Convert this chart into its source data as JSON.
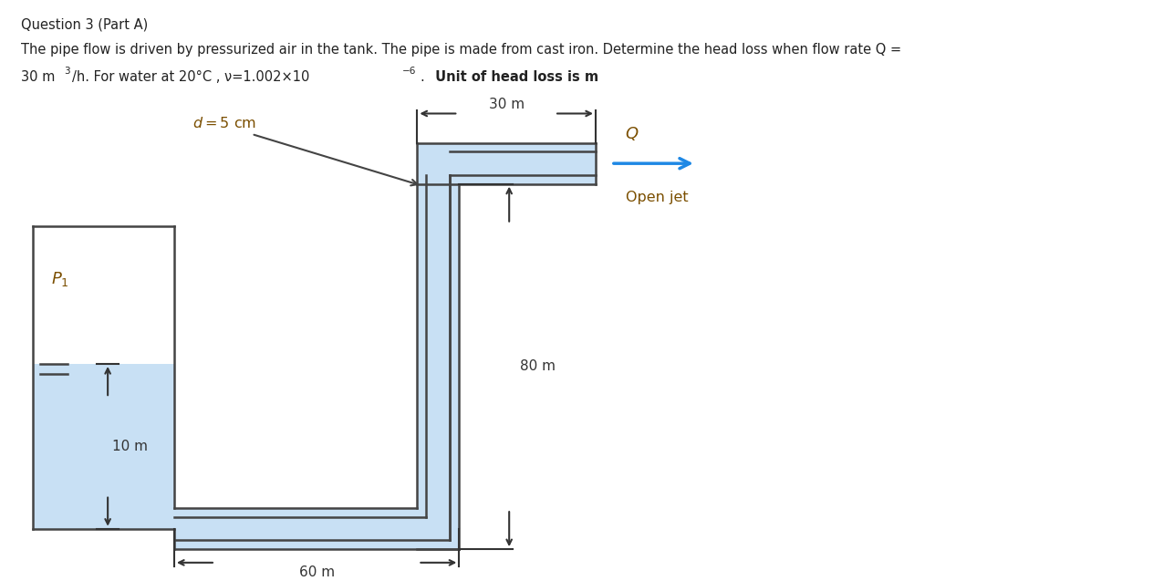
{
  "title": "Question 3 (Part A)",
  "desc1": "The pipe flow is driven by pressurized air in the tank. The pipe is made from cast iron. Determine the head loss when flow rate Q =",
  "desc2a": "30 m",
  "desc2b": "/h. For water at 20°C , ν=1.002×10",
  "desc2c": ". ",
  "desc2bold": "Unit of head loss is m",
  "bg_color": "#ffffff",
  "tank_color": "#c8e0f4",
  "tank_border": "#444444",
  "pipe_fill": "#c8e0f4",
  "pipe_border": "#444444",
  "text_color": "#222222",
  "label_brown": "#7b4f00",
  "arrow_blue": "#1e88e5",
  "dim_color": "#333333"
}
